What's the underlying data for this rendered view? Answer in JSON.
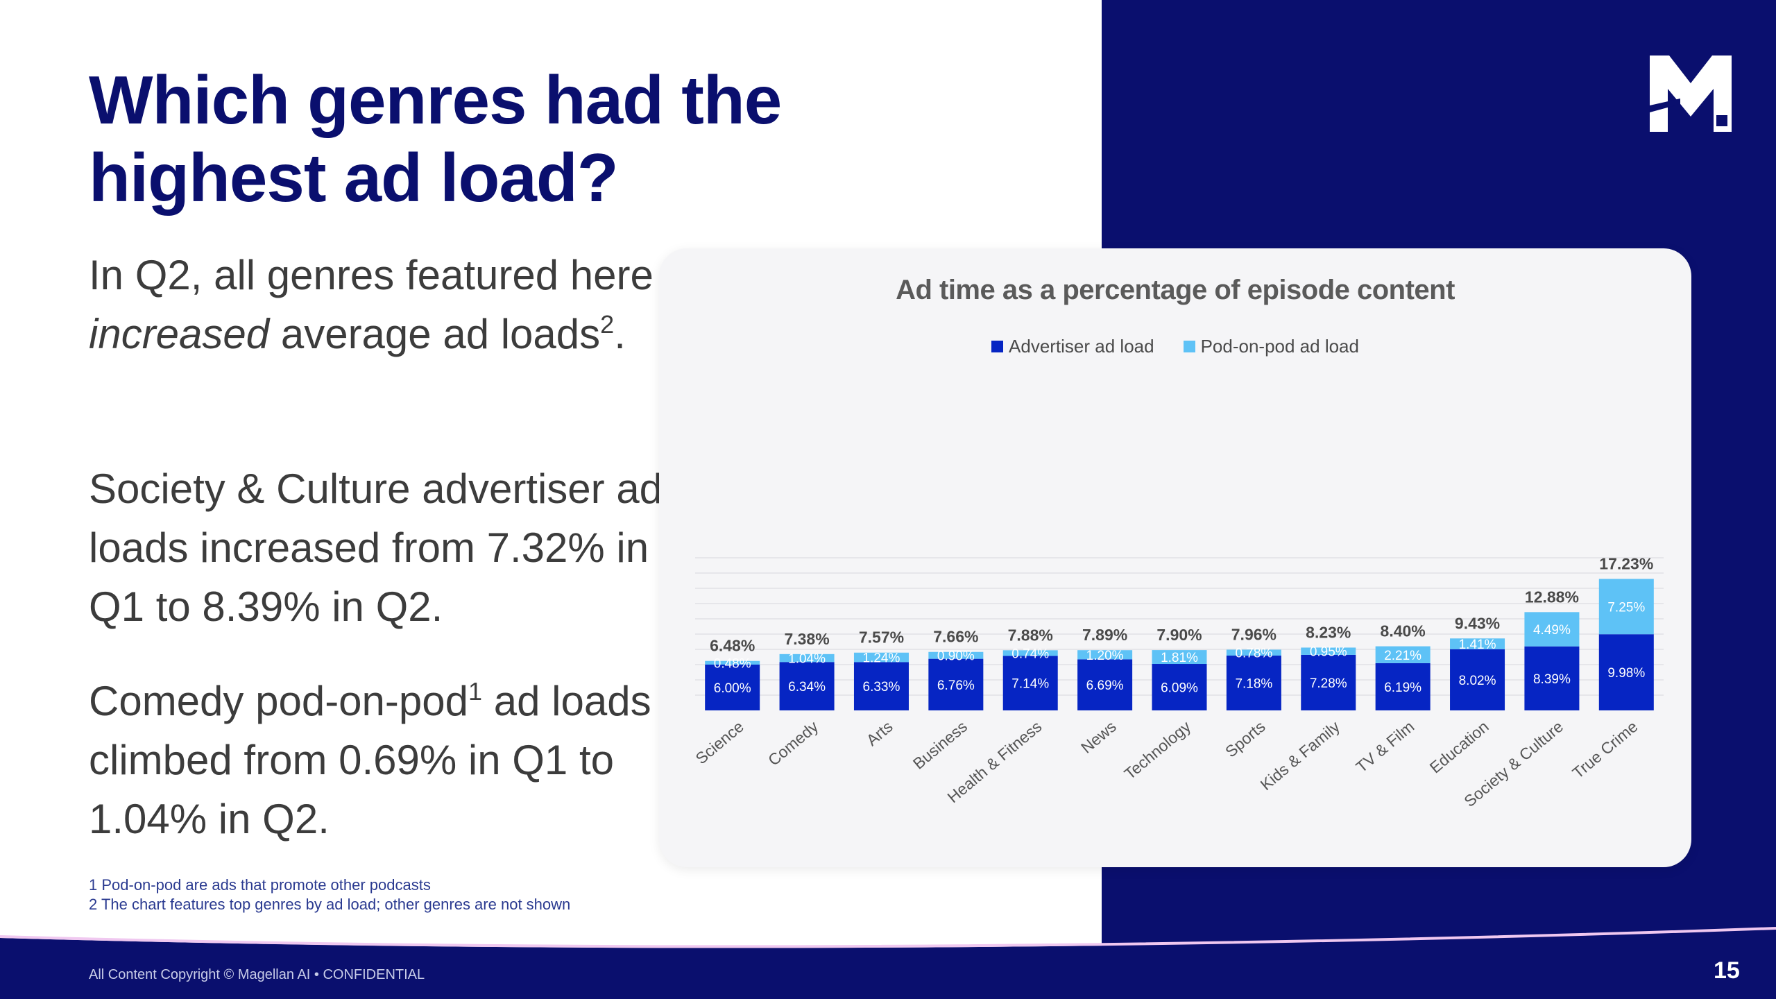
{
  "slide": {
    "title": "Which genres had the highest ad load?",
    "paragraphs": {
      "p1_a": "In Q2, all genres featured here ",
      "p1_em": "increased",
      "p1_b": " average ad loads",
      "p1_sup": "2",
      "p1_end": ".",
      "p2": "Society & Culture advertiser ad loads increased from 7.32% in Q1 to 8.39% in Q2.",
      "p3_a": "Comedy pod-on-pod",
      "p3_sup": "1",
      "p3_b": " ad loads climbed from 0.69% in Q1 to 1.04% in Q2."
    },
    "footnotes": [
      "1 Pod-on-pod are ads that promote other podcasts",
      "2 The chart features top genres by ad load; other genres are not shown"
    ],
    "copyright": "All Content Copyright © Magellan AI • CONFIDENTIAL",
    "page_number": "15"
  },
  "colors": {
    "navy": "#0a0f6e",
    "advertiser": "#0625c3",
    "pod_on_pod": "#5ec2f6",
    "gridline": "#e2e2e6"
  },
  "chart_data": {
    "type": "bar",
    "stacked": true,
    "title": "Ad time as a percentage of episode content",
    "categories": [
      "Science",
      "Comedy",
      "Arts",
      "Business",
      "Health & Fitness",
      "News",
      "Technology",
      "Sports",
      "Kids & Family",
      "TV & Film",
      "Education",
      "Society & Culture",
      "True Crime"
    ],
    "series": [
      {
        "name": "Advertiser ad load",
        "values": [
          6.0,
          6.34,
          6.33,
          6.76,
          7.14,
          6.69,
          6.09,
          7.18,
          7.28,
          6.19,
          8.02,
          8.39,
          9.98
        ]
      },
      {
        "name": "Pod-on-pod ad load",
        "values": [
          0.48,
          1.04,
          1.24,
          0.9,
          0.74,
          1.2,
          1.81,
          0.78,
          0.95,
          2.21,
          1.41,
          4.49,
          7.25
        ]
      }
    ],
    "totals": [
      6.48,
      7.38,
      7.57,
      7.66,
      7.88,
      7.89,
      7.9,
      7.96,
      8.23,
      8.4,
      9.43,
      12.88,
      17.23
    ],
    "legend_position": "top-center",
    "value_format": "%",
    "ylim": [
      0,
      20
    ],
    "grid": true
  }
}
